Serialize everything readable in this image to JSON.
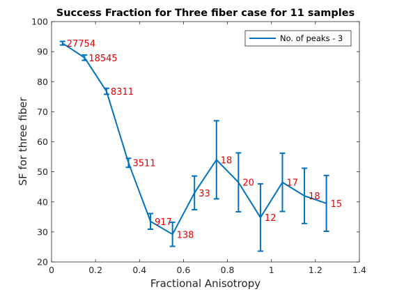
{
  "chart_data": {
    "type": "line",
    "title": "Success Fraction for Three fiber case for 11 samples",
    "xlabel": "Fractional Anisotropy",
    "ylabel": "SF for three fiber",
    "xlim": [
      0,
      1.4
    ],
    "ylim": [
      20,
      100
    ],
    "xticks": [
      "0",
      "0.2",
      "0.4",
      "0.6",
      "0.8",
      "1",
      "1.2",
      "1.4"
    ],
    "yticks": [
      "20",
      "30",
      "40",
      "50",
      "60",
      "70",
      "80",
      "90",
      "100"
    ],
    "grid": false,
    "legend_position": "top-right",
    "series": [
      {
        "name": "No. of peaks - 3",
        "color": "#0072bd",
        "x": [
          0.05,
          0.15,
          0.25,
          0.35,
          0.45,
          0.55,
          0.65,
          0.75,
          0.85,
          0.95,
          1.05,
          1.15,
          1.25
        ],
        "y": [
          92.8,
          88.0,
          76.8,
          53.0,
          33.5,
          29.2,
          43.0,
          54.0,
          46.5,
          34.8,
          46.5,
          42.0,
          39.5
        ],
        "err": [
          0.6,
          0.9,
          1.0,
          1.5,
          2.6,
          4.0,
          5.6,
          13.0,
          9.8,
          11.2,
          9.7,
          9.2,
          9.3
        ],
        "labels": [
          "27754",
          "18545",
          "8311",
          "3511",
          "917",
          "138",
          "33",
          "18",
          "20",
          "12",
          "17",
          "18",
          "15"
        ]
      }
    ]
  }
}
